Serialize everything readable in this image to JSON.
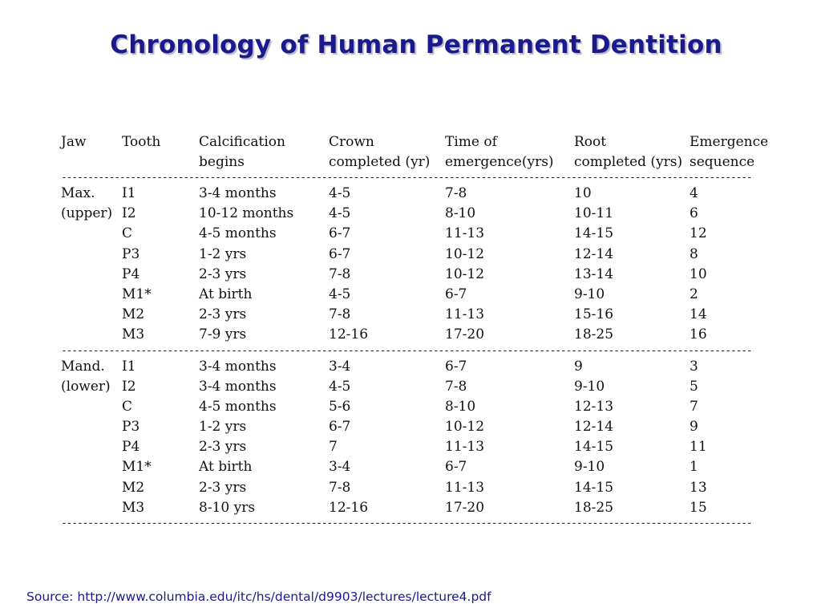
{
  "title": "Chronology of Human Permanent Dentition",
  "headers": {
    "line1": [
      "Jaw",
      "Tooth",
      "Calcification",
      "Crown",
      "Time of",
      "Root",
      "Emergence"
    ],
    "line2": [
      "",
      "",
      "begins",
      "completed (yr)",
      "emergence(yrs)",
      "completed (yrs)",
      "sequence"
    ]
  },
  "separator": "-------------------------------------------------------------------------------------------------------------------------------------------------------",
  "sections": [
    {
      "rows": [
        [
          "Max.",
          "I1",
          "3-4 months",
          "4-5",
          "7-8",
          "10",
          "4"
        ],
        [
          "(upper)",
          "I2",
          "10-12 months",
          "4-5",
          "8-10",
          "10-11",
          "6"
        ],
        [
          "",
          "C",
          "4-5 months",
          "6-7",
          "11-13",
          "14-15",
          "12"
        ],
        [
          "",
          "P3",
          "1-2 yrs",
          "6-7",
          "10-12",
          "12-14",
          "8"
        ],
        [
          "",
          "P4",
          "2-3 yrs",
          "7-8",
          "10-12",
          "13-14",
          "10"
        ],
        [
          "",
          "M1*",
          "At birth",
          "4-5",
          "6-7",
          " 9-10",
          "2"
        ],
        [
          "",
          "M2",
          "2-3 yrs",
          "7-8",
          "11-13",
          "15-16",
          "14"
        ],
        [
          "",
          "M3",
          "7-9 yrs",
          "12-16",
          "17-20",
          "18-25",
          "16"
        ]
      ]
    },
    {
      "rows": [
        [
          "Mand.",
          "I1",
          "3-4 months",
          "3-4",
          "6-7",
          "9",
          "3"
        ],
        [
          "(lower)",
          "I2",
          "3-4 months",
          "4-5",
          "7-8",
          "9-10",
          "5"
        ],
        [
          "",
          "C",
          "4-5 months",
          "5-6",
          "8-10",
          "12-13",
          "7"
        ],
        [
          "",
          "P3",
          "1-2 yrs",
          "6-7",
          "10-12",
          "12-14",
          "9"
        ],
        [
          "",
          "P4",
          "2-3 yrs",
          "7",
          "11-13",
          "14-15",
          "11"
        ],
        [
          "",
          "M1*",
          "At birth",
          "3-4",
          "6-7",
          "9-10",
          "1"
        ],
        [
          "",
          "M2",
          "2-3 yrs",
          "7-8",
          "11-13",
          "14-15",
          "13"
        ],
        [
          "",
          "M3",
          "8-10 yrs",
          "12-16",
          "17-20",
          "18-25",
          "15"
        ]
      ]
    }
  ],
  "source": "Source: http://www.columbia.edu/itc/hs/dental/d9903/lectures/lecture4.pdf"
}
